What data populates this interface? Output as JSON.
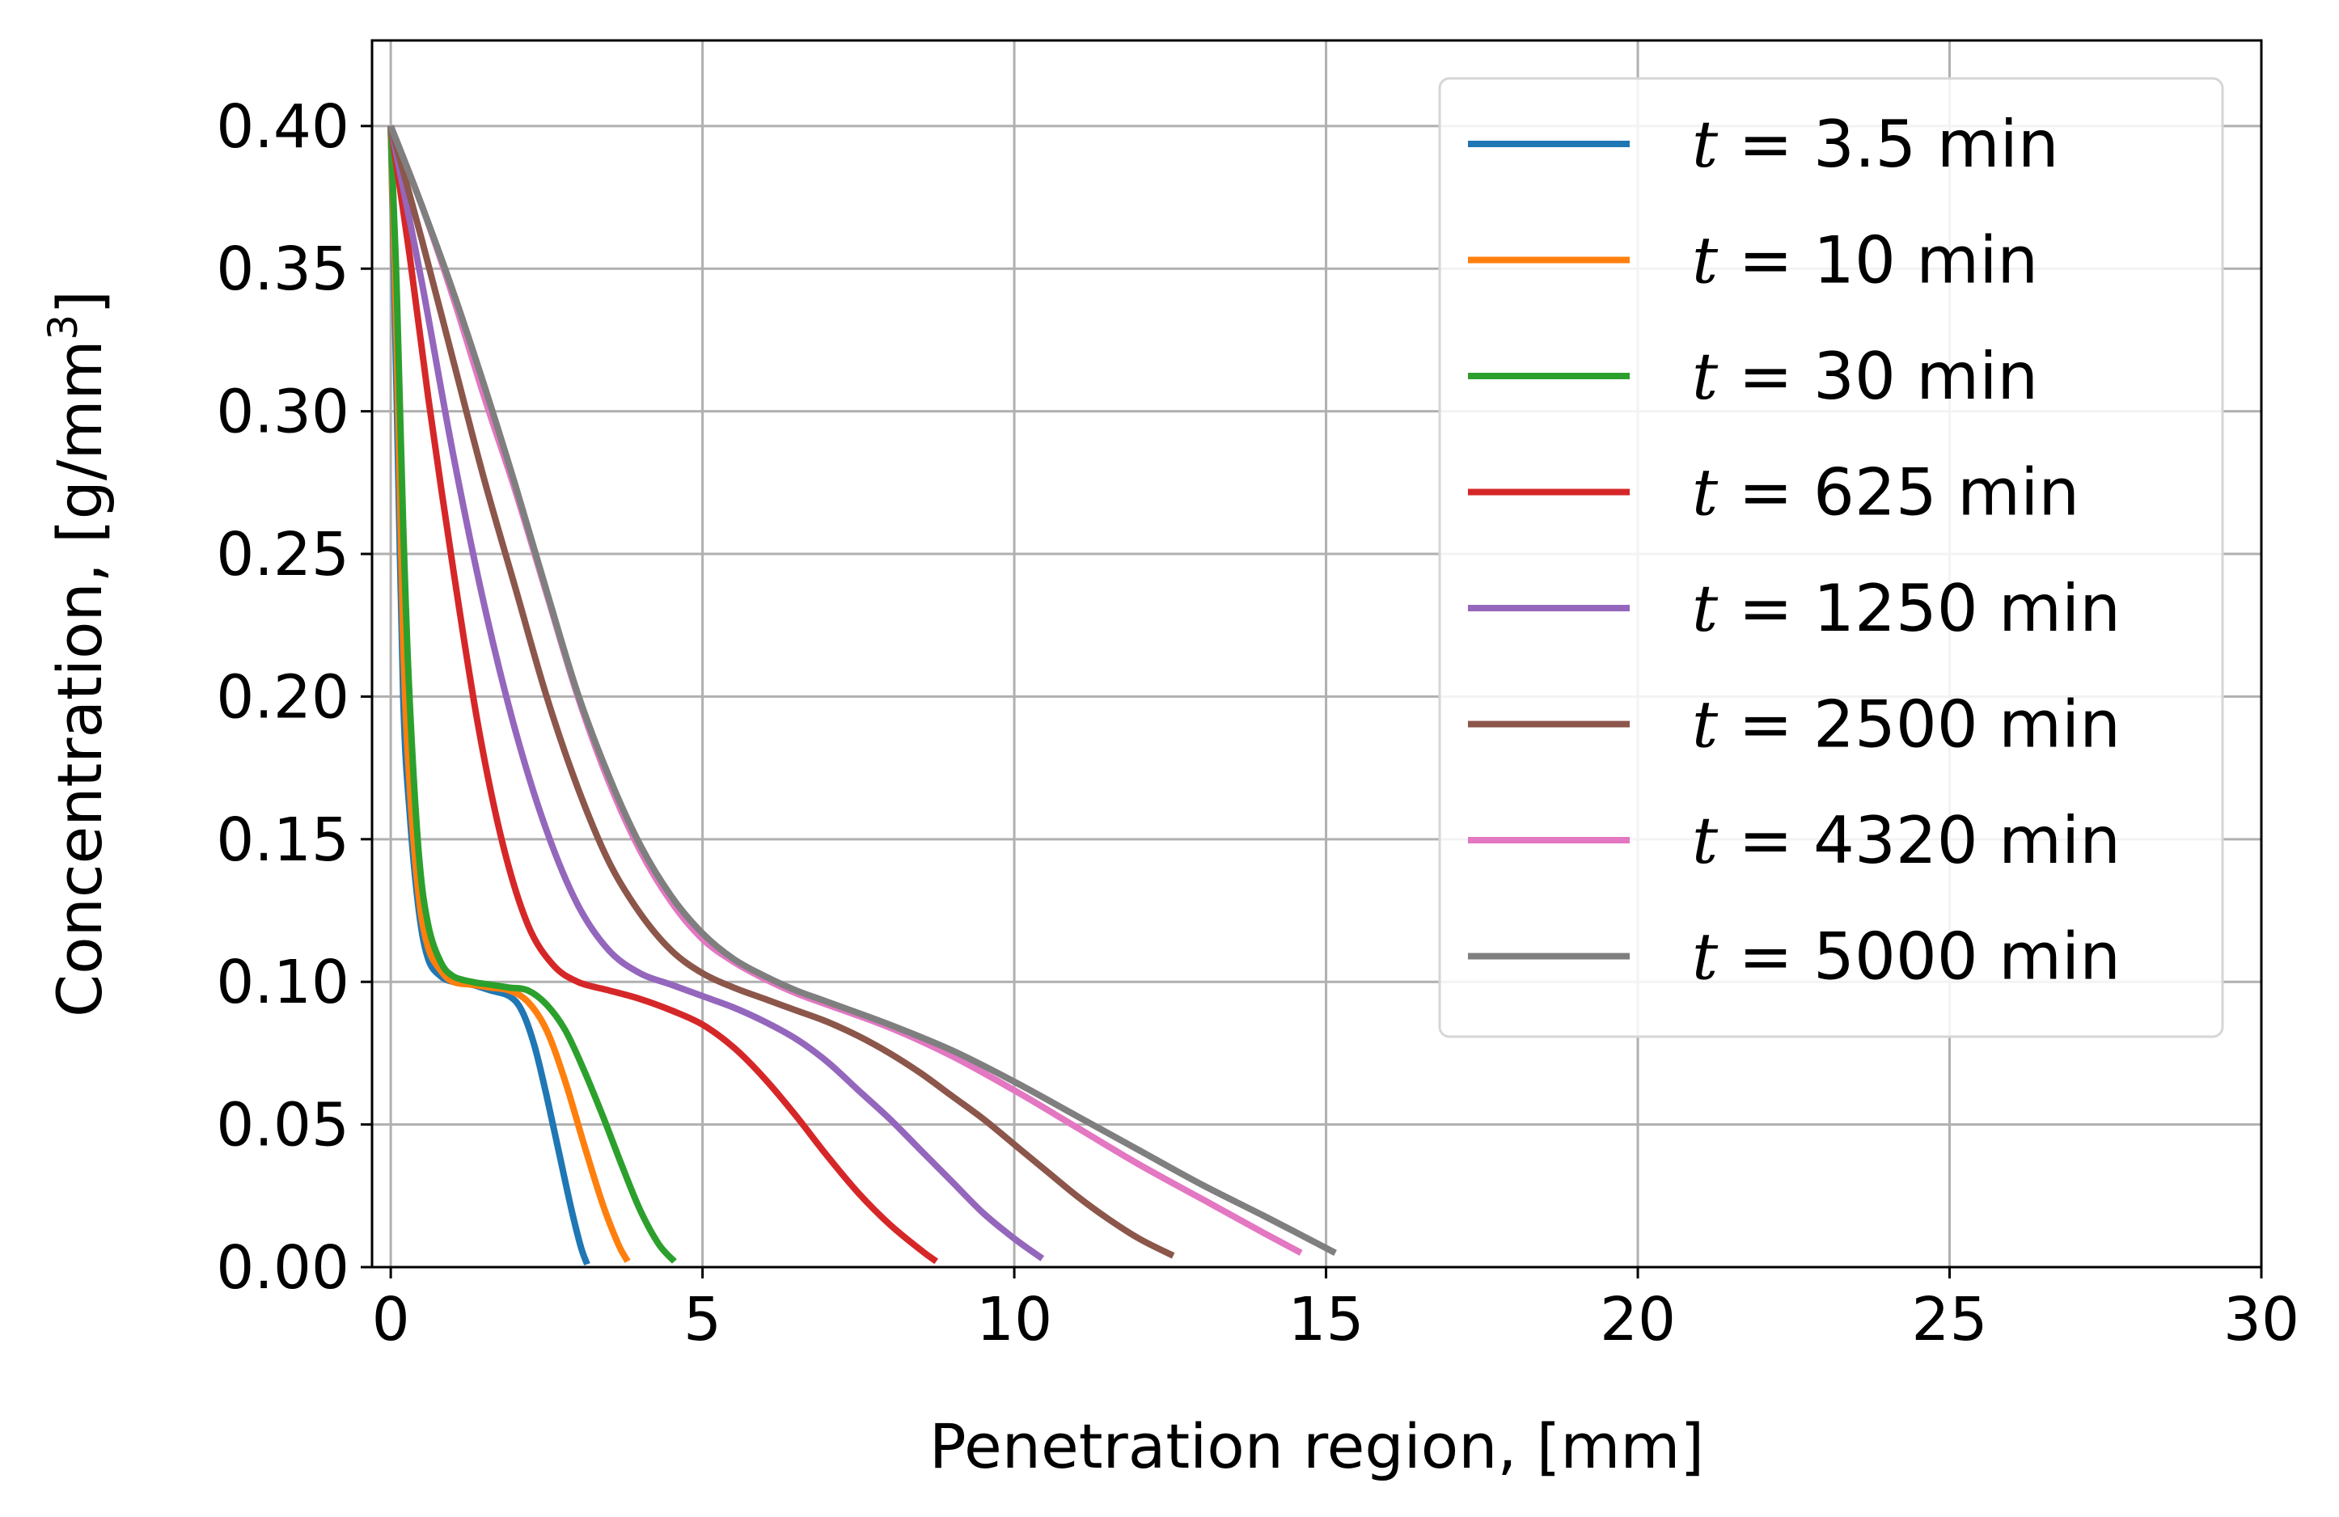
{
  "chart_data": {
    "type": "line",
    "xlabel": "Penetration region, [mm]",
    "ylabel": "Concentration,  [g/mm",
    "ylabel_sup": "3",
    "ylabel_end": "]",
    "xlim": [
      -0.3,
      30
    ],
    "ylim": [
      0,
      0.43
    ],
    "xticks": [
      0,
      5,
      10,
      15,
      20,
      25,
      30
    ],
    "xtick_labels": [
      "0",
      "5",
      "10",
      "15",
      "20",
      "25",
      "30"
    ],
    "yticks": [
      0.0,
      0.05,
      0.1,
      0.15,
      0.2,
      0.25,
      0.3,
      0.35,
      0.4
    ],
    "ytick_labels": [
      "0.00",
      "0.05",
      "0.10",
      "0.15",
      "0.20",
      "0.25",
      "0.30",
      "0.35",
      "0.40"
    ],
    "grid": true,
    "legend_position": "top-right",
    "series": [
      {
        "name": "t = 3.5 min",
        "label_t": "t",
        "label_rest": " = 3.5 min",
        "color": "#1f77b4",
        "x": [
          0,
          0.05,
          0.1,
          0.2,
          0.3,
          0.45,
          0.6,
          0.8,
          1.0,
          1.3,
          1.6,
          1.9,
          2.1,
          2.3,
          2.5,
          2.7,
          2.9,
          3.05,
          3.15
        ],
        "y": [
          0.4,
          0.35,
          0.3,
          0.2,
          0.16,
          0.125,
          0.108,
          0.102,
          0.1,
          0.099,
          0.097,
          0.095,
          0.09,
          0.078,
          0.06,
          0.04,
          0.02,
          0.007,
          0.001
        ]
      },
      {
        "name": "t = 10 min",
        "label_t": "t",
        "label_rest": " = 10 min",
        "color": "#ff7f0e",
        "x": [
          0,
          0.05,
          0.1,
          0.2,
          0.3,
          0.45,
          0.6,
          0.8,
          1.0,
          1.3,
          1.6,
          1.9,
          2.2,
          2.5,
          2.8,
          3.1,
          3.4,
          3.65,
          3.8
        ],
        "y": [
          0.4,
          0.36,
          0.32,
          0.22,
          0.17,
          0.13,
          0.112,
          0.104,
          0.1,
          0.099,
          0.098,
          0.097,
          0.093,
          0.083,
          0.065,
          0.043,
          0.022,
          0.008,
          0.002
        ]
      },
      {
        "name": "t = 30 min",
        "label_t": "t",
        "label_rest": " = 30 min",
        "color": "#2ca02c",
        "x": [
          0,
          0.05,
          0.1,
          0.2,
          0.3,
          0.45,
          0.6,
          0.8,
          1.0,
          1.3,
          1.6,
          1.9,
          2.2,
          2.5,
          2.8,
          3.1,
          3.4,
          3.7,
          4.0,
          4.3,
          4.55
        ],
        "y": [
          0.4,
          0.37,
          0.34,
          0.26,
          0.2,
          0.145,
          0.12,
          0.107,
          0.102,
          0.1,
          0.099,
          0.098,
          0.097,
          0.092,
          0.083,
          0.069,
          0.053,
          0.036,
          0.02,
          0.008,
          0.002
        ]
      },
      {
        "name": "t = 625 min",
        "label_t": "t",
        "label_rest": " = 625 min",
        "color": "#d62728",
        "x": [
          0,
          0.3,
          0.6,
          1.0,
          1.4,
          1.8,
          2.2,
          2.6,
          3.0,
          3.5,
          4.0,
          4.5,
          5.0,
          5.5,
          6.0,
          6.5,
          7.0,
          7.5,
          8.0,
          8.5,
          8.75
        ],
        "y": [
          0.4,
          0.355,
          0.305,
          0.245,
          0.19,
          0.148,
          0.12,
          0.106,
          0.1,
          0.097,
          0.094,
          0.09,
          0.085,
          0.077,
          0.066,
          0.053,
          0.039,
          0.026,
          0.015,
          0.006,
          0.002
        ]
      },
      {
        "name": "t = 1250 min",
        "label_t": "t",
        "label_rest": " = 1250 min",
        "color": "#9467bd",
        "x": [
          0,
          0.5,
          1.0,
          1.5,
          2.0,
          2.5,
          3.0,
          3.5,
          4.0,
          4.5,
          5.0,
          5.5,
          6.0,
          6.5,
          7.0,
          7.5,
          8.0,
          8.5,
          9.0,
          9.5,
          10.0,
          10.45
        ],
        "y": [
          0.4,
          0.345,
          0.285,
          0.232,
          0.188,
          0.153,
          0.127,
          0.111,
          0.103,
          0.099,
          0.095,
          0.091,
          0.086,
          0.08,
          0.072,
          0.062,
          0.052,
          0.041,
          0.03,
          0.019,
          0.01,
          0.003
        ]
      },
      {
        "name": "t = 2500 min",
        "label_t": "t",
        "label_rest": " = 2500 min",
        "color": "#8c564b",
        "x": [
          0,
          0.5,
          1.0,
          1.5,
          2.0,
          2.5,
          3.0,
          3.5,
          4.0,
          4.5,
          5.0,
          5.5,
          6.0,
          6.5,
          7.0,
          7.5,
          8.0,
          8.5,
          9.0,
          9.5,
          10.0,
          10.5,
          11.0,
          11.5,
          12.0,
          12.55
        ],
        "y": [
          0.4,
          0.36,
          0.318,
          0.276,
          0.238,
          0.2,
          0.168,
          0.142,
          0.124,
          0.111,
          0.103,
          0.098,
          0.094,
          0.09,
          0.086,
          0.081,
          0.075,
          0.068,
          0.06,
          0.052,
          0.043,
          0.034,
          0.025,
          0.017,
          0.01,
          0.004
        ]
      },
      {
        "name": "t = 4320 min",
        "label_t": "t",
        "label_rest": " = 4320 min",
        "color": "#e377c2",
        "x": [
          0,
          0.5,
          1.0,
          1.5,
          2.0,
          2.5,
          3.0,
          3.5,
          4.0,
          4.5,
          5.0,
          5.5,
          6.0,
          6.5,
          7.0,
          8.0,
          9.0,
          10.0,
          11.0,
          12.0,
          13.0,
          14.0,
          14.6
        ],
        "y": [
          0.4,
          0.372,
          0.34,
          0.305,
          0.272,
          0.236,
          0.2,
          0.17,
          0.146,
          0.128,
          0.115,
          0.107,
          0.101,
          0.096,
          0.092,
          0.084,
          0.074,
          0.062,
          0.049,
          0.036,
          0.024,
          0.012,
          0.005
        ]
      },
      {
        "name": "t = 5000 min",
        "label_t": "t",
        "label_rest": " = 5000 min",
        "color": "#7f7f7f",
        "x": [
          0,
          0.5,
          1.0,
          1.5,
          2.0,
          2.5,
          3.0,
          3.5,
          4.0,
          4.5,
          5.0,
          5.5,
          6.0,
          6.5,
          7.0,
          8.0,
          9.0,
          10.0,
          11.0,
          12.0,
          13.0,
          14.0,
          15.15
        ],
        "y": [
          0.4,
          0.372,
          0.342,
          0.309,
          0.274,
          0.237,
          0.201,
          0.172,
          0.148,
          0.13,
          0.117,
          0.108,
          0.102,
          0.097,
          0.093,
          0.085,
          0.076,
          0.065,
          0.053,
          0.041,
          0.029,
          0.018,
          0.005
        ]
      }
    ]
  }
}
